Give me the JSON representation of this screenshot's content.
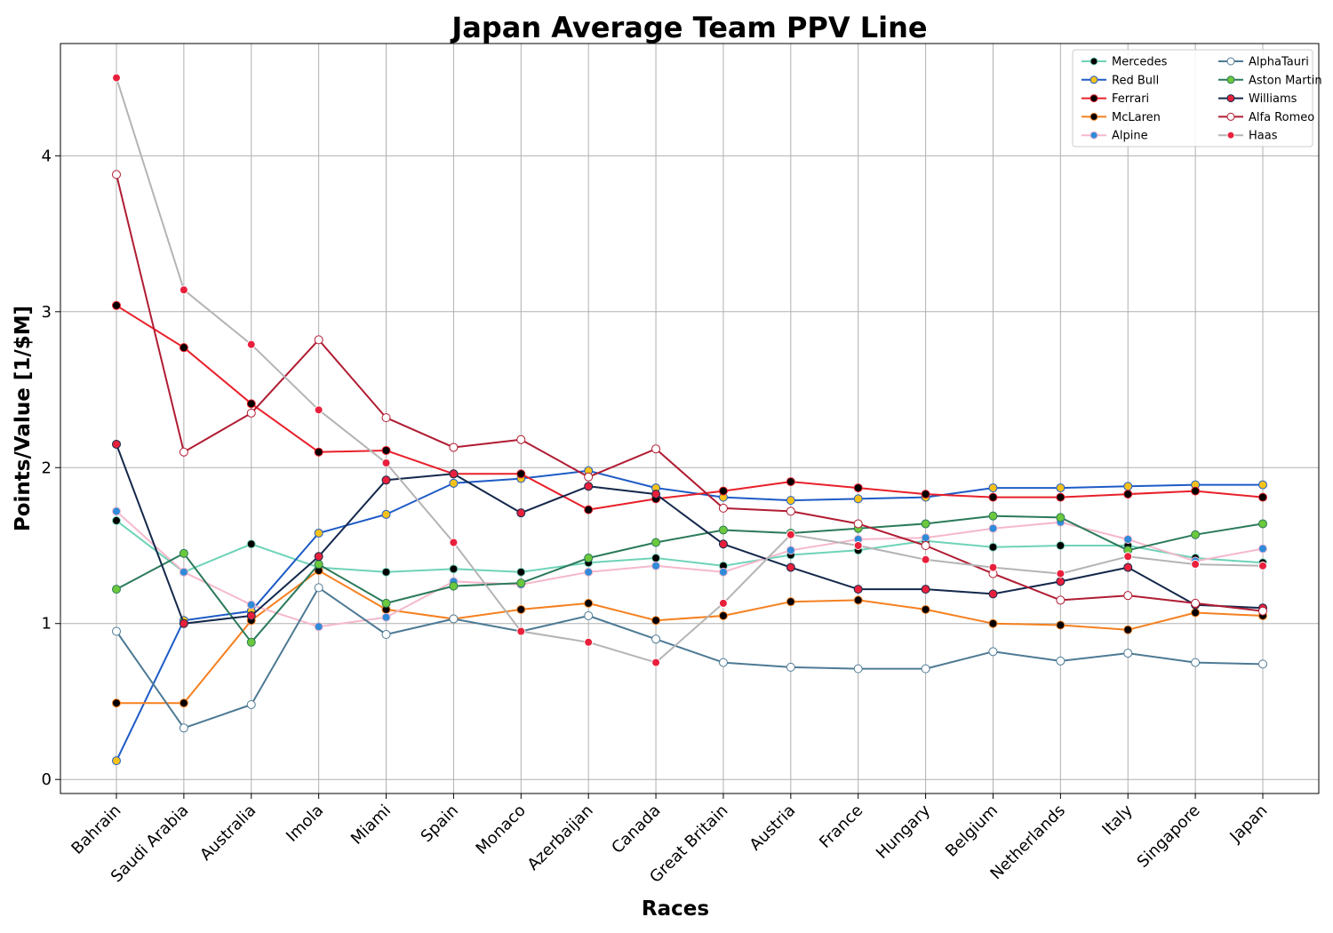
{
  "chart_data": {
    "type": "line",
    "title": "Japan Average Team PPV Line",
    "xlabel": "Races",
    "ylabel": "Points/Value [1/$M]",
    "categories": [
      "Bahrain",
      "Saudi Arabia",
      "Australia",
      "Imola",
      "Miami",
      "Spain",
      "Monaco",
      "Azerbaijan",
      "Canada",
      "Great Britain",
      "Austria",
      "France",
      "Hungary",
      "Belgium",
      "Netherlands",
      "Italy",
      "Singapore",
      "Japan"
    ],
    "ylim": [
      -0.09,
      4.72
    ],
    "yticks": [
      0,
      1,
      2,
      3,
      4
    ],
    "grid": true,
    "legend_position": "top-right",
    "series": [
      {
        "name": "Mercedes",
        "line_color": "#6ed3b8",
        "marker_color": "#000000",
        "marker_edge": "#7fd9c0",
        "values": [
          1.66,
          1.33,
          1.51,
          1.36,
          1.33,
          1.35,
          1.33,
          1.39,
          1.42,
          1.37,
          1.44,
          1.47,
          1.53,
          1.49,
          1.5,
          1.5,
          1.42,
          1.39
        ]
      },
      {
        "name": "Red Bull",
        "line_color": "#1e5bc6",
        "marker_color": "#f5c21b",
        "marker_edge": "#1e5bc6",
        "values": [
          0.12,
          1.02,
          1.08,
          1.58,
          1.7,
          1.9,
          1.93,
          1.98,
          1.87,
          1.81,
          1.79,
          1.8,
          1.81,
          1.87,
          1.87,
          1.88,
          1.89,
          1.89
        ]
      },
      {
        "name": "Ferrari",
        "line_color": "#e8202a",
        "marker_color": "#000000",
        "marker_edge": "#e8202a",
        "values": [
          3.04,
          2.77,
          2.41,
          2.1,
          2.11,
          1.96,
          1.96,
          1.73,
          1.8,
          1.85,
          1.91,
          1.87,
          1.83,
          1.81,
          1.81,
          1.83,
          1.85,
          1.81
        ]
      },
      {
        "name": "McLaren",
        "line_color": "#f58020",
        "marker_color": "#000000",
        "marker_edge": "#f58020",
        "values": [
          0.49,
          0.49,
          1.02,
          1.34,
          1.09,
          1.03,
          1.09,
          1.13,
          1.02,
          1.05,
          1.14,
          1.15,
          1.09,
          1.0,
          0.99,
          0.96,
          1.07,
          1.05
        ]
      },
      {
        "name": "Alpine",
        "line_color": "#f5b8cc",
        "marker_color": "#2f8bd9",
        "marker_edge": "#f5b8cc",
        "values": [
          1.72,
          1.33,
          1.12,
          0.98,
          1.04,
          1.27,
          1.25,
          1.33,
          1.37,
          1.33,
          1.47,
          1.54,
          1.55,
          1.61,
          1.65,
          1.54,
          1.4,
          1.48
        ]
      },
      {
        "name": "AlphaTauri",
        "line_color": "#4e7a94",
        "marker_color": "#ffffff",
        "marker_edge": "#4e7a94",
        "values": [
          0.95,
          0.33,
          0.48,
          1.23,
          0.93,
          1.03,
          0.95,
          1.05,
          0.9,
          0.75,
          0.72,
          0.71,
          0.71,
          0.82,
          0.76,
          0.81,
          0.75,
          0.74
        ]
      },
      {
        "name": "Aston Martin",
        "line_color": "#2b7a5a",
        "marker_color": "#6cc83c",
        "marker_edge": "#2b7a5a",
        "values": [
          1.22,
          1.45,
          0.88,
          1.38,
          1.13,
          1.24,
          1.26,
          1.42,
          1.52,
          1.6,
          1.58,
          1.61,
          1.64,
          1.69,
          1.68,
          1.47,
          1.57,
          1.64
        ]
      },
      {
        "name": "Williams",
        "line_color": "#14284b",
        "marker_color": "#e8203c",
        "marker_edge": "#14284b",
        "values": [
          2.15,
          1.0,
          1.05,
          1.43,
          1.92,
          1.96,
          1.71,
          1.88,
          1.83,
          1.51,
          1.36,
          1.22,
          1.22,
          1.19,
          1.27,
          1.36,
          1.12,
          1.1
        ]
      },
      {
        "name": "Alfa Romeo",
        "line_color": "#b01c32",
        "marker_color": "#ffffff",
        "marker_edge": "#b01c32",
        "values": [
          3.88,
          2.1,
          2.35,
          2.82,
          2.32,
          2.13,
          2.18,
          1.94,
          2.12,
          1.74,
          1.72,
          1.64,
          1.5,
          1.32,
          1.15,
          1.18,
          1.13,
          1.08
        ]
      },
      {
        "name": "Haas",
        "line_color": "#b4b4b4",
        "marker_color": "#e8203c",
        "marker_edge": "#ffffff",
        "values": [
          4.5,
          3.14,
          2.79,
          2.37,
          2.03,
          1.52,
          0.95,
          0.88,
          0.75,
          1.13,
          1.57,
          1.5,
          1.41,
          1.36,
          1.32,
          1.43,
          1.38,
          1.37
        ]
      }
    ]
  }
}
